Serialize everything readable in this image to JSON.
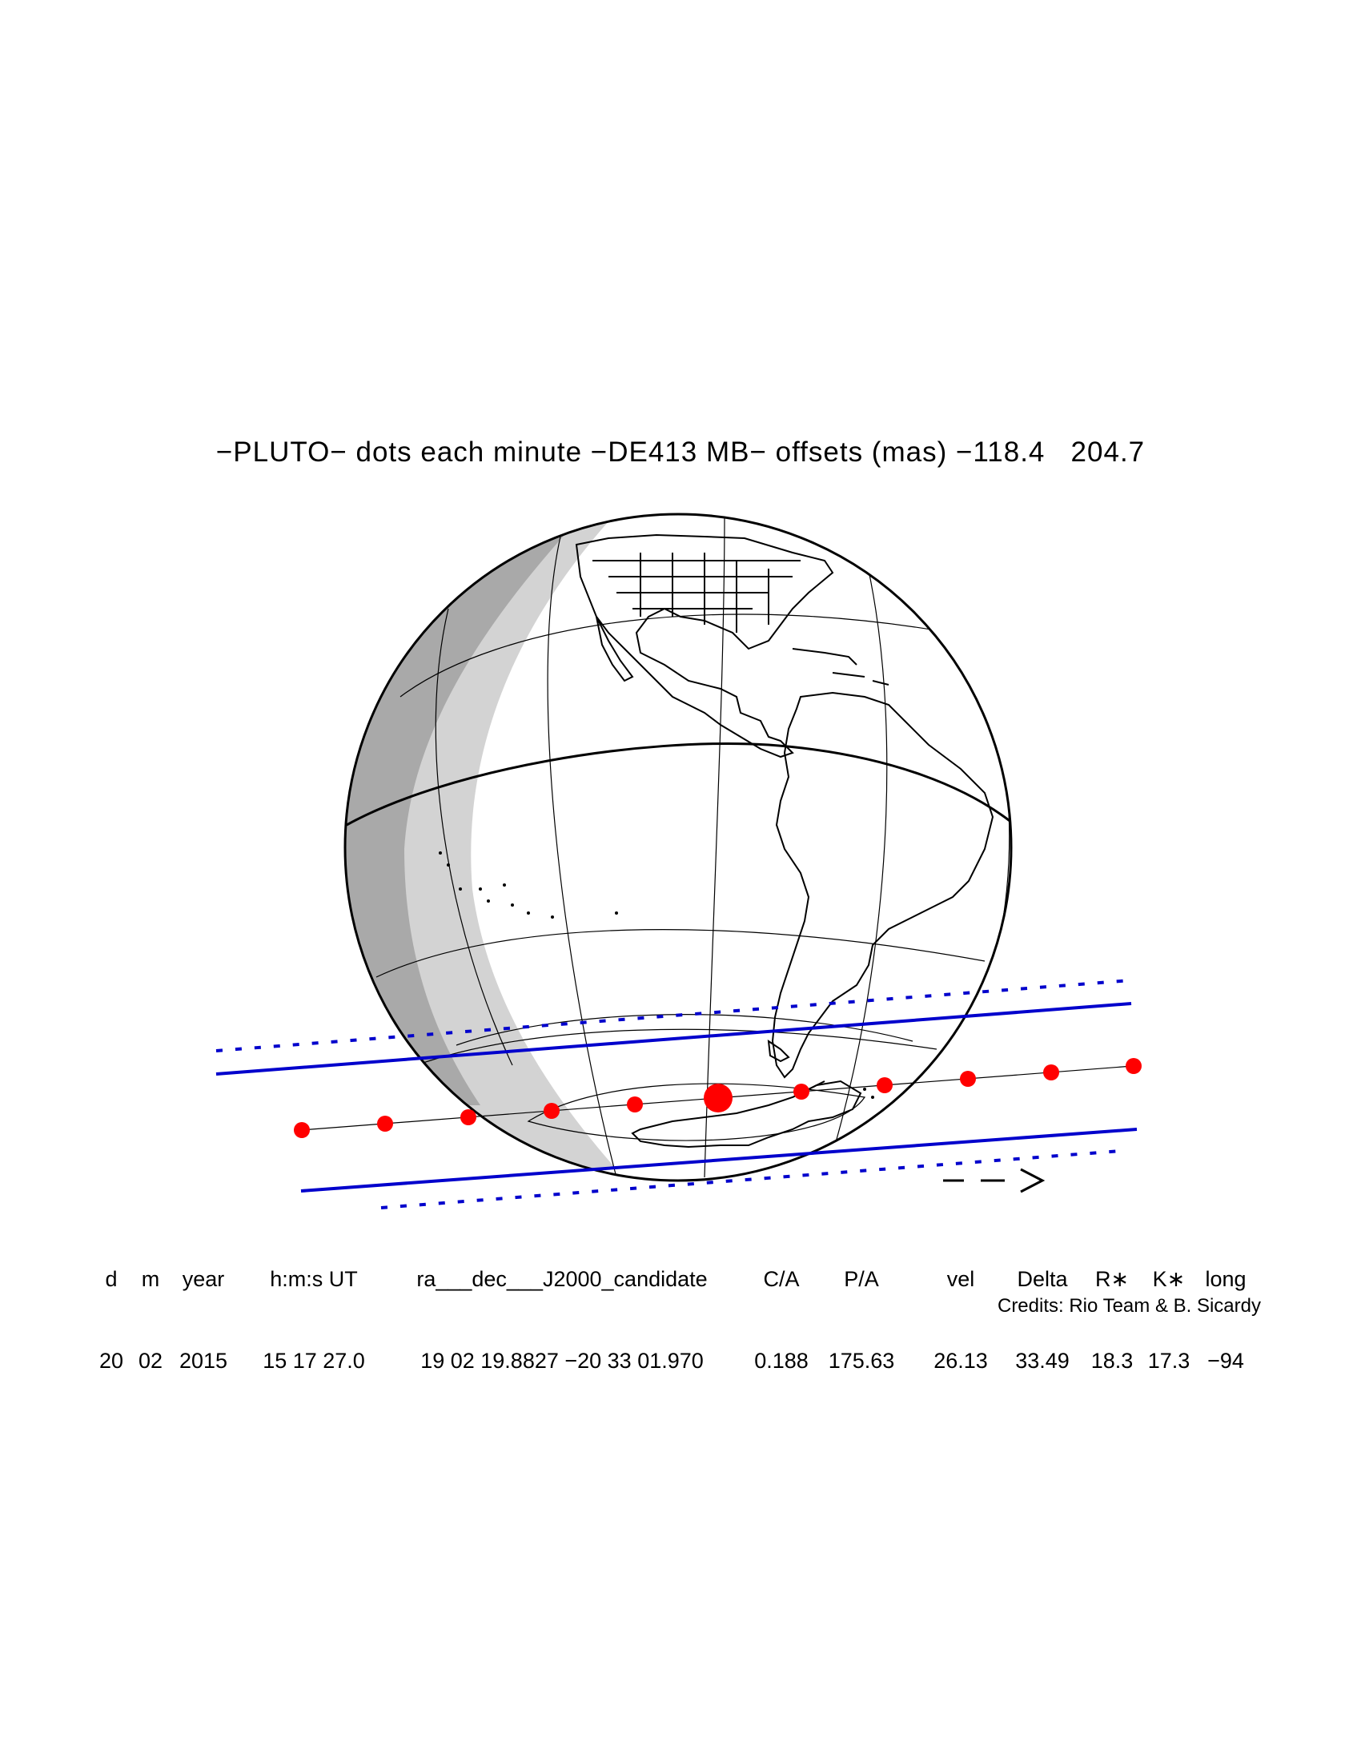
{
  "title": "−PLUTO− dots each minute −DE413 MB− offsets (mas) −118.4   204.7",
  "map": {
    "colors": {
      "outline": "#000000",
      "grid": "#000000",
      "night_light": "#d3d3d3",
      "night_dark": "#a9a9a9",
      "path_limits": "#0000cc",
      "centerline_dots": "#ff0000"
    },
    "markers": {
      "time_dots": "red dots each minute",
      "closest_approach": "larger red dot",
      "direction_arrow": "--->"
    }
  },
  "table": {
    "columns": [
      {
        "header": "d",
        "value": "20"
      },
      {
        "header": "m",
        "value": "02"
      },
      {
        "header": "year",
        "value": "2015"
      },
      {
        "header": "h:m:s UT",
        "value": "15 17 27.0"
      },
      {
        "header": "ra___dec___J2000_candidate",
        "value": "19 02 19.8827 −20 33 01.970"
      },
      {
        "header": "C/A",
        "value": "0.188"
      },
      {
        "header": "P/A",
        "value": "175.63"
      },
      {
        "header": "vel",
        "value": "26.13"
      },
      {
        "header": "Delta",
        "value": "33.49"
      },
      {
        "header": "R∗",
        "value": "18.3"
      },
      {
        "header": "K∗",
        "value": "17.3"
      },
      {
        "header": "long",
        "value": "−94"
      }
    ]
  },
  "credits": "Credits: Rio Team & B. Sicardy",
  "arrow_label": "−−>"
}
